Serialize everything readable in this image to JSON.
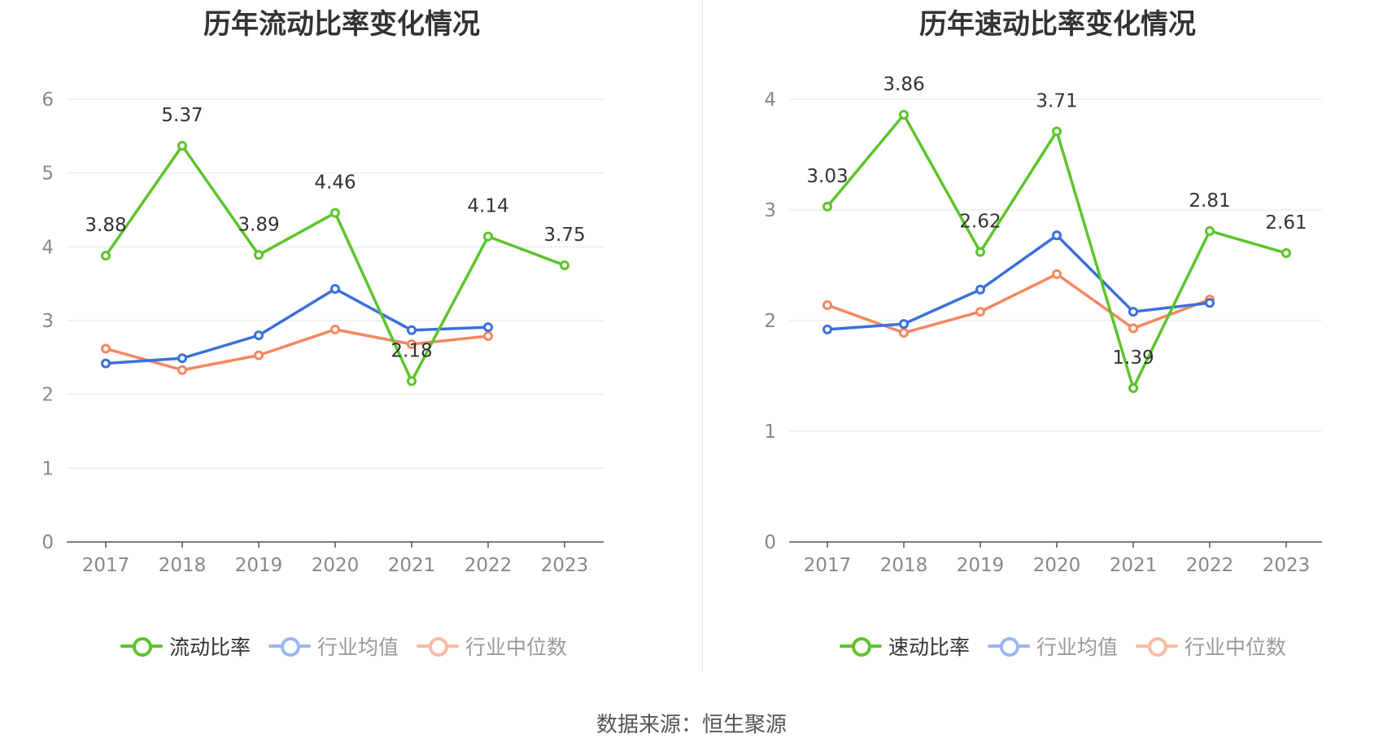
{
  "source_label": "数据来源：恒生聚源",
  "colors": {
    "ratio": "#5cc42b",
    "avg": "#3a6fdd",
    "median": "#f5875f",
    "grid": "#e3e5f0",
    "axis": "#555555",
    "tick_text": "#888888"
  },
  "chart_data": [
    {
      "type": "line",
      "title": "历年流动比率变化情况",
      "categories": [
        "2017",
        "2018",
        "2019",
        "2020",
        "2021",
        "2022",
        "2023"
      ],
      "ylim": [
        0,
        6
      ],
      "yticks": [
        0,
        1,
        2,
        3,
        4,
        5,
        6
      ],
      "grid": true,
      "legend_position": "bottom",
      "series": [
        {
          "name": "流动比率",
          "color": "#5cc42b",
          "values": [
            3.88,
            5.37,
            3.89,
            4.46,
            2.18,
            4.14,
            3.75
          ],
          "labels": [
            "3.88",
            "5.37",
            "3.89",
            "4.46",
            "2.18",
            "4.14",
            "3.75"
          ],
          "legend_active": true
        },
        {
          "name": "行业均值",
          "color": "#3a6fdd",
          "values": [
            2.42,
            2.49,
            2.8,
            3.43,
            2.87,
            2.91,
            null
          ],
          "legend_active": false
        },
        {
          "name": "行业中位数",
          "color": "#f5875f",
          "values": [
            2.62,
            2.33,
            2.53,
            2.88,
            2.68,
            2.79,
            null
          ],
          "legend_active": false
        }
      ]
    },
    {
      "type": "line",
      "title": "历年速动比率变化情况",
      "categories": [
        "2017",
        "2018",
        "2019",
        "2020",
        "2021",
        "2022",
        "2023"
      ],
      "ylim": [
        0,
        4
      ],
      "yticks": [
        0,
        1,
        2,
        3,
        4
      ],
      "grid": true,
      "legend_position": "bottom",
      "series": [
        {
          "name": "速动比率",
          "color": "#5cc42b",
          "values": [
            3.03,
            3.86,
            2.62,
            3.71,
            1.39,
            2.81,
            2.61
          ],
          "labels": [
            "3.03",
            "3.86",
            "2.62",
            "3.71",
            "1.39",
            "2.81",
            "2.61"
          ],
          "legend_active": true
        },
        {
          "name": "行业均值",
          "color": "#3a6fdd",
          "values": [
            1.92,
            1.97,
            2.28,
            2.77,
            2.08,
            2.16,
            null
          ],
          "legend_active": false
        },
        {
          "name": "行业中位数",
          "color": "#f5875f",
          "values": [
            2.14,
            1.89,
            2.08,
            2.42,
            1.93,
            2.19,
            null
          ],
          "legend_active": false
        }
      ]
    }
  ]
}
